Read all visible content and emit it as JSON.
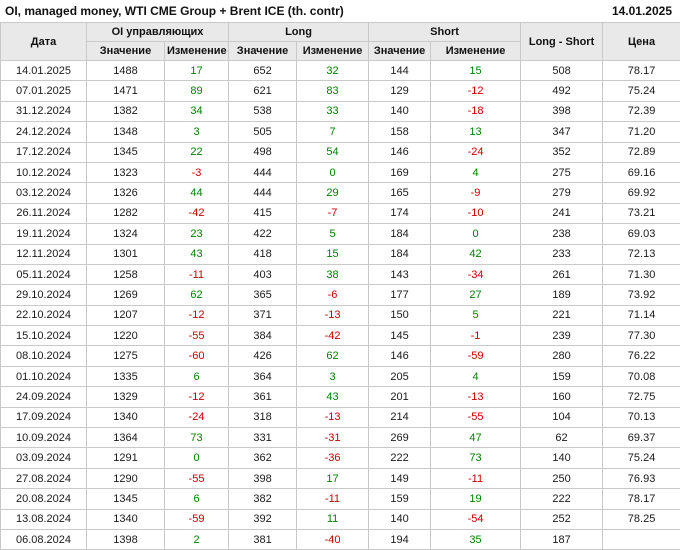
{
  "title": "OI, managed money, WTI CME Group + Brent ICE (th. contr)",
  "report_date": "14.01.2025",
  "colors": {
    "positive": "#008000",
    "negative": "#cc0000",
    "header_bg": "#e9e9e9",
    "border": "#c9c9c9"
  },
  "chart_data": {
    "type": "table",
    "title": "OI, managed money, WTI CME Group + Brent ICE (th. contr)",
    "as_of": "14.01.2025",
    "headers": {
      "date": "Дата",
      "oi_group": "OI управляющих",
      "long_group": "Long",
      "short_group": "Short",
      "long_short": "Long - Short",
      "price": "Цена",
      "value": "Значение",
      "change": "Изменение"
    },
    "columns": [
      "date",
      "oi_value",
      "oi_change",
      "long_value",
      "long_change",
      "short_value",
      "short_change",
      "long_short",
      "price"
    ],
    "rows": [
      [
        "14.01.2025",
        "1488",
        "17",
        "652",
        "32",
        "144",
        "15",
        "508",
        "78.17"
      ],
      [
        "07.01.2025",
        "1471",
        "89",
        "621",
        "83",
        "129",
        "-12",
        "492",
        "75.24"
      ],
      [
        "31.12.2024",
        "1382",
        "34",
        "538",
        "33",
        "140",
        "-18",
        "398",
        "72.39"
      ],
      [
        "24.12.2024",
        "1348",
        "3",
        "505",
        "7",
        "158",
        "13",
        "347",
        "71.20"
      ],
      [
        "17.12.2024",
        "1345",
        "22",
        "498",
        "54",
        "146",
        "-24",
        "352",
        "72.89"
      ],
      [
        "10.12.2024",
        "1323",
        "-3",
        "444",
        "0",
        "169",
        "4",
        "275",
        "69.16"
      ],
      [
        "03.12.2024",
        "1326",
        "44",
        "444",
        "29",
        "165",
        "-9",
        "279",
        "69.92"
      ],
      [
        "26.11.2024",
        "1282",
        "-42",
        "415",
        "-7",
        "174",
        "-10",
        "241",
        "73.21"
      ],
      [
        "19.11.2024",
        "1324",
        "23",
        "422",
        "5",
        "184",
        "0",
        "238",
        "69.03"
      ],
      [
        "12.11.2024",
        "1301",
        "43",
        "418",
        "15",
        "184",
        "42",
        "233",
        "72.13"
      ],
      [
        "05.11.2024",
        "1258",
        "-11",
        "403",
        "38",
        "143",
        "-34",
        "261",
        "71.30"
      ],
      [
        "29.10.2024",
        "1269",
        "62",
        "365",
        "-6",
        "177",
        "27",
        "189",
        "73.92"
      ],
      [
        "22.10.2024",
        "1207",
        "-12",
        "371",
        "-13",
        "150",
        "5",
        "221",
        "71.14"
      ],
      [
        "15.10.2024",
        "1220",
        "-55",
        "384",
        "-42",
        "145",
        "-1",
        "239",
        "77.30"
      ],
      [
        "08.10.2024",
        "1275",
        "-60",
        "426",
        "62",
        "146",
        "-59",
        "280",
        "76.22"
      ],
      [
        "01.10.2024",
        "1335",
        "6",
        "364",
        "3",
        "205",
        "4",
        "159",
        "70.08"
      ],
      [
        "24.09.2024",
        "1329",
        "-12",
        "361",
        "43",
        "201",
        "-13",
        "160",
        "72.75"
      ],
      [
        "17.09.2024",
        "1340",
        "-24",
        "318",
        "-13",
        "214",
        "-55",
        "104",
        "70.13"
      ],
      [
        "10.09.2024",
        "1364",
        "73",
        "331",
        "-31",
        "269",
        "47",
        "62",
        "69.37"
      ],
      [
        "03.09.2024",
        "1291",
        "0",
        "362",
        "-36",
        "222",
        "73",
        "140",
        "75.24"
      ],
      [
        "27.08.2024",
        "1290",
        "-55",
        "398",
        "17",
        "149",
        "-11",
        "250",
        "76.93"
      ],
      [
        "20.08.2024",
        "1345",
        "6",
        "382",
        "-11",
        "159",
        "19",
        "222",
        "78.17"
      ],
      [
        "13.08.2024",
        "1340",
        "-59",
        "392",
        "11",
        "140",
        "-54",
        "252",
        "78.25"
      ],
      [
        "06.08.2024",
        "1398",
        "2",
        "381",
        "-40",
        "194",
        "35",
        "187",
        ""
      ]
    ]
  }
}
